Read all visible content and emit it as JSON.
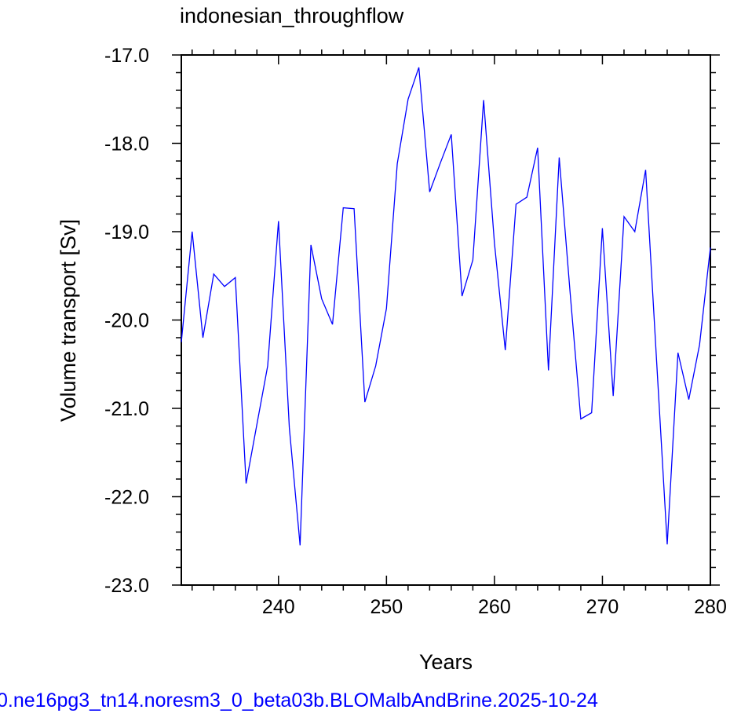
{
  "chart_data": {
    "type": "line",
    "title": "indonesian_throughflow",
    "xlabel": "Years",
    "ylabel": "Volume transport [Sv]",
    "footer": "0.ne16pg3_tn14.noresm3_0_beta03b.BLOMalbAndBrine.2025-10-24",
    "xlim": [
      231,
      280
    ],
    "ylim": [
      -23.0,
      -17.0
    ],
    "x_ticks": [
      240,
      250,
      260,
      270,
      280
    ],
    "x_tick_labels": [
      "240",
      "250",
      "260",
      "270",
      "280"
    ],
    "y_ticks": [
      -23.0,
      -22.0,
      -21.0,
      -20.0,
      -19.0,
      -18.0,
      -17.0
    ],
    "y_tick_labels": [
      "-23.0",
      "-22.0",
      "-21.0",
      "-20.0",
      "-19.0",
      "-18.0",
      "-17.0"
    ],
    "grid": false,
    "line_color": "#0000ff",
    "footer_color": "#0000ff",
    "series": [
      {
        "x": [
          231,
          232,
          233,
          234,
          235,
          236,
          237,
          238,
          239,
          240,
          241,
          242,
          243,
          244,
          245,
          246,
          247,
          248,
          249,
          250,
          251,
          252,
          253,
          254,
          255,
          256,
          257,
          258,
          259,
          260,
          261,
          262,
          263,
          264,
          265,
          266,
          267,
          268,
          269,
          270,
          271,
          272,
          273,
          274,
          275,
          276,
          277,
          278,
          279,
          280
        ],
        "y": [
          -20.25,
          -19.0,
          -20.2,
          -19.48,
          -19.62,
          -19.52,
          -21.85,
          -21.18,
          -20.52,
          -18.88,
          -21.22,
          -22.55,
          -19.15,
          -19.76,
          -20.05,
          -18.73,
          -18.74,
          -20.93,
          -20.52,
          -19.87,
          -18.23,
          -17.5,
          -17.14,
          -18.55,
          -18.22,
          -17.9,
          -19.73,
          -19.32,
          -17.51,
          -19.13,
          -20.34,
          -18.69,
          -18.61,
          -18.05,
          -20.57,
          -18.16,
          -19.68,
          -21.12,
          -21.05,
          -18.96,
          -20.86,
          -18.83,
          -19.0,
          -18.3,
          -20.42,
          -22.54,
          -20.37,
          -20.9,
          -20.28,
          -19.18
        ]
      }
    ]
  }
}
